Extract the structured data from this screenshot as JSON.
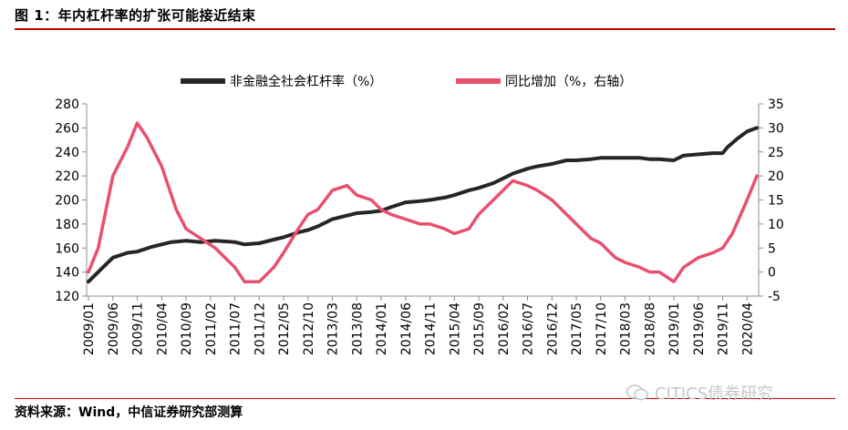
{
  "header": {
    "title": "图 1：年内杠杆率的扩张可能接近结束"
  },
  "footer": {
    "source": "资料来源：Wind，中信证券研究部测算",
    "watermark": "CITICS债券研究"
  },
  "chart_data": {
    "type": "line",
    "legend_position": "top",
    "grid": false,
    "x_ticks": [
      "2009/01",
      "2009/06",
      "2009/11",
      "2010/04",
      "2010/09",
      "2011/02",
      "2011/07",
      "2011/12",
      "2012/05",
      "2012/10",
      "2013/03",
      "2013/08",
      "2014/01",
      "2014/06",
      "2014/11",
      "2015/04",
      "2015/09",
      "2016/02",
      "2016/07",
      "2016/12",
      "2017/05",
      "2017/10",
      "2018/03",
      "2018/08",
      "2019/01",
      "2019/06",
      "2019/11",
      "2020/04"
    ],
    "y_left": {
      "min": 120,
      "max": 280,
      "ticks": [
        120,
        140,
        160,
        180,
        200,
        220,
        240,
        260,
        280
      ]
    },
    "y_right": {
      "min": -5,
      "max": 35,
      "ticks": [
        -5,
        0,
        5,
        10,
        15,
        20,
        25,
        30,
        35
      ]
    },
    "series": [
      {
        "name": "非金融全社会杠杆率（%）",
        "color": "#262626",
        "axis": "left",
        "points": [
          [
            "2009/01",
            132
          ],
          [
            "2009/03",
            140
          ],
          [
            "2009/06",
            152
          ],
          [
            "2009/09",
            156
          ],
          [
            "2009/11",
            157
          ],
          [
            "2010/02",
            161
          ],
          [
            "2010/04",
            163
          ],
          [
            "2010/06",
            165
          ],
          [
            "2010/09",
            166
          ],
          [
            "2010/12",
            165
          ],
          [
            "2011/03",
            166
          ],
          [
            "2011/07",
            165
          ],
          [
            "2011/09",
            163
          ],
          [
            "2011/12",
            164
          ],
          [
            "2012/03",
            167
          ],
          [
            "2012/05",
            169
          ],
          [
            "2012/08",
            173
          ],
          [
            "2012/10",
            175
          ],
          [
            "2012/12",
            178
          ],
          [
            "2013/03",
            184
          ],
          [
            "2013/06",
            187
          ],
          [
            "2013/08",
            189
          ],
          [
            "2013/11",
            190
          ],
          [
            "2014/01",
            191
          ],
          [
            "2014/03",
            194
          ],
          [
            "2014/06",
            198
          ],
          [
            "2014/09",
            199
          ],
          [
            "2014/11",
            200
          ],
          [
            "2015/02",
            202
          ],
          [
            "2015/04",
            204
          ],
          [
            "2015/07",
            208
          ],
          [
            "2015/09",
            210
          ],
          [
            "2015/12",
            214
          ],
          [
            "2016/02",
            218
          ],
          [
            "2016/04",
            222
          ],
          [
            "2016/07",
            226
          ],
          [
            "2016/09",
            228
          ],
          [
            "2016/12",
            230
          ],
          [
            "2017/03",
            233
          ],
          [
            "2017/05",
            233
          ],
          [
            "2017/08",
            234
          ],
          [
            "2017/10",
            235
          ],
          [
            "2018/01",
            235
          ],
          [
            "2018/03",
            235
          ],
          [
            "2018/06",
            235
          ],
          [
            "2018/08",
            234
          ],
          [
            "2018/10",
            234
          ],
          [
            "2019/01",
            233
          ],
          [
            "2019/03",
            237
          ],
          [
            "2019/06",
            238
          ],
          [
            "2019/09",
            239
          ],
          [
            "2019/11",
            239
          ],
          [
            "2019/12",
            244
          ],
          [
            "2020/02",
            251
          ],
          [
            "2020/04",
            257
          ],
          [
            "2020/06",
            260
          ]
        ]
      },
      {
        "name": "同比增加（%，右轴）",
        "color": "#e8506e",
        "axis": "right",
        "points": [
          [
            "2009/01",
            0
          ],
          [
            "2009/03",
            5
          ],
          [
            "2009/06",
            20
          ],
          [
            "2009/09",
            26
          ],
          [
            "2009/11",
            31
          ],
          [
            "2010/01",
            28
          ],
          [
            "2010/04",
            22
          ],
          [
            "2010/07",
            13
          ],
          [
            "2010/09",
            9
          ],
          [
            "2010/12",
            7
          ],
          [
            "2011/03",
            5
          ],
          [
            "2011/07",
            1
          ],
          [
            "2011/09",
            -2
          ],
          [
            "2011/12",
            -2
          ],
          [
            "2012/03",
            1
          ],
          [
            "2012/05",
            4
          ],
          [
            "2012/08",
            9
          ],
          [
            "2012/10",
            12
          ],
          [
            "2012/12",
            13
          ],
          [
            "2013/03",
            17
          ],
          [
            "2013/06",
            18
          ],
          [
            "2013/08",
            16
          ],
          [
            "2013/11",
            15
          ],
          [
            "2014/01",
            13
          ],
          [
            "2014/03",
            12
          ],
          [
            "2014/06",
            11
          ],
          [
            "2014/09",
            10
          ],
          [
            "2014/11",
            10
          ],
          [
            "2015/02",
            9
          ],
          [
            "2015/04",
            8
          ],
          [
            "2015/07",
            9
          ],
          [
            "2015/09",
            12
          ],
          [
            "2015/12",
            15
          ],
          [
            "2016/02",
            17
          ],
          [
            "2016/04",
            19
          ],
          [
            "2016/07",
            18
          ],
          [
            "2016/09",
            17
          ],
          [
            "2016/12",
            15
          ],
          [
            "2017/03",
            12
          ],
          [
            "2017/05",
            10
          ],
          [
            "2017/08",
            7
          ],
          [
            "2017/10",
            6
          ],
          [
            "2018/01",
            3
          ],
          [
            "2018/03",
            2
          ],
          [
            "2018/06",
            1
          ],
          [
            "2018/08",
            0
          ],
          [
            "2018/10",
            0
          ],
          [
            "2019/01",
            -2
          ],
          [
            "2019/03",
            1
          ],
          [
            "2019/06",
            3
          ],
          [
            "2019/09",
            4
          ],
          [
            "2019/11",
            5
          ],
          [
            "2020/01",
            8
          ],
          [
            "2020/04",
            15
          ],
          [
            "2020/06",
            20
          ]
        ]
      }
    ]
  }
}
